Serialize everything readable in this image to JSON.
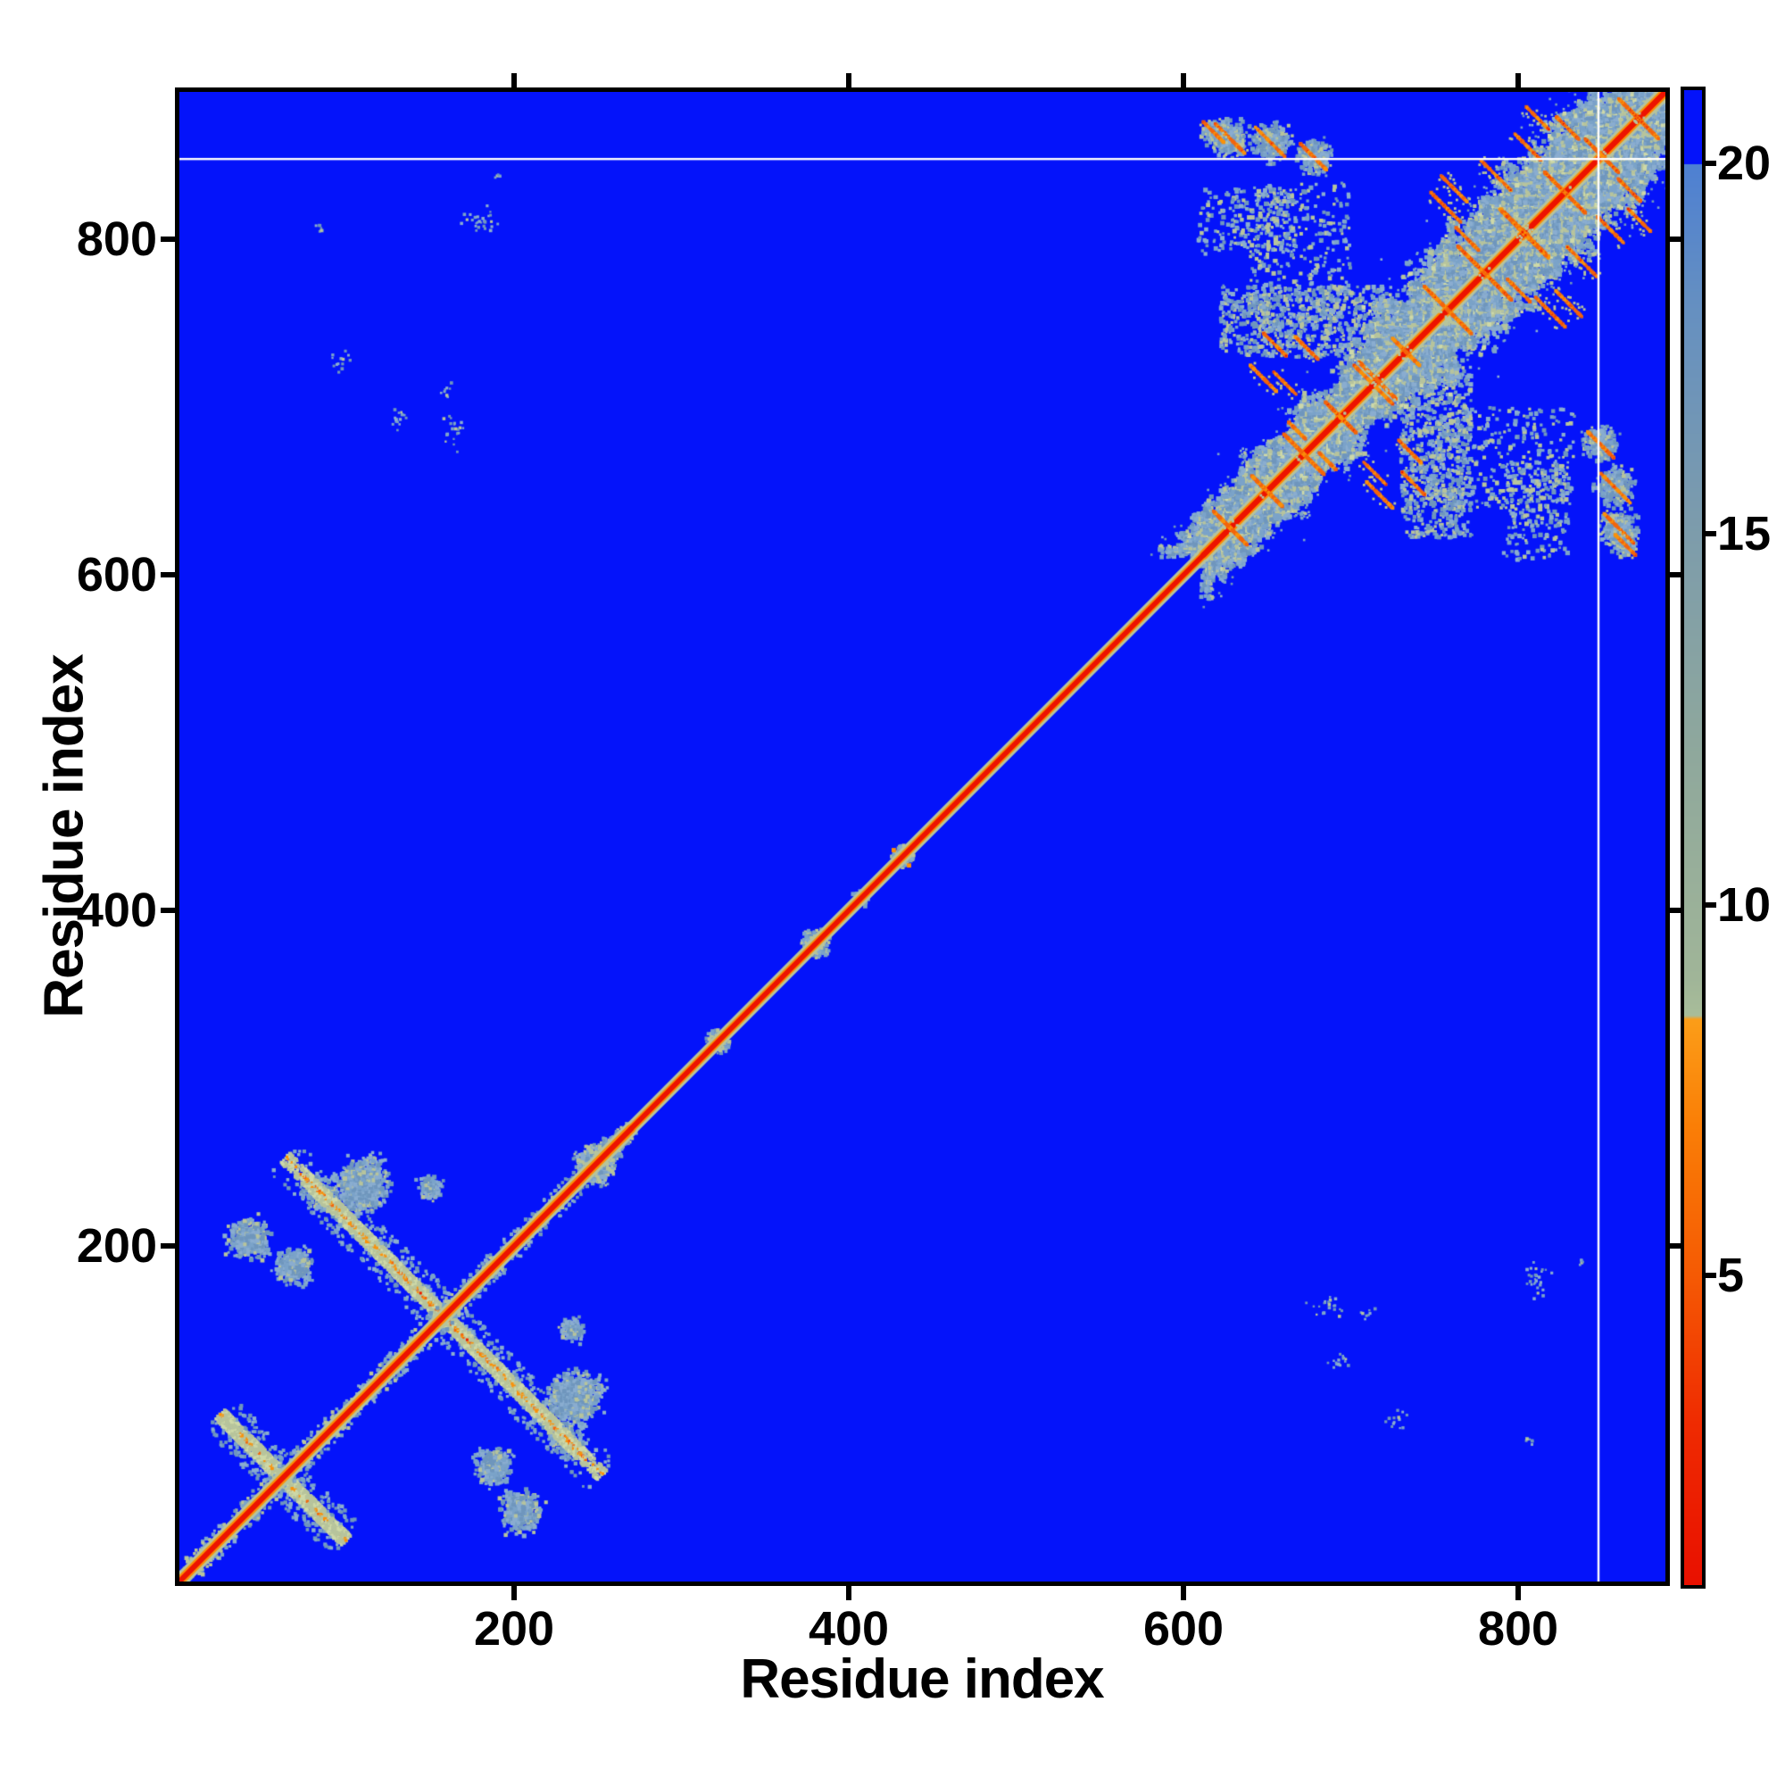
{
  "figure": {
    "x_axis_title": "Residue index",
    "y_axis_title": "Residue index",
    "x_tick_labels": [
      "200",
      "400",
      "600",
      "800"
    ],
    "y_tick_labels": [
      "200",
      "400",
      "600",
      "800"
    ],
    "colorbar_tick_labels": [
      "20",
      "15",
      "10",
      "5"
    ]
  },
  "chart_data": {
    "type": "heatmap",
    "title": "",
    "xlabel": "Residue index",
    "ylabel": "Residue index",
    "x_range": [
      0,
      888
    ],
    "y_range": [
      0,
      888
    ],
    "x_ticks": [
      200,
      400,
      600,
      800
    ],
    "y_ticks": [
      200,
      400,
      600,
      800
    ],
    "axis_max": 888,
    "symmetric": true,
    "missing_residue_line": 848,
    "colorbar": {
      "min": 0.8,
      "max": 21.0,
      "ticks": [
        20,
        15,
        10,
        5
      ],
      "blue_cutoff": 20.0,
      "orange_sage_boundary": 8.45,
      "stops": [
        [
          21.0,
          "#0413fa"
        ],
        [
          20.01,
          "#0413fa"
        ],
        [
          20.0,
          "#4e80d2"
        ],
        [
          18.0,
          "#6690c0"
        ],
        [
          15.0,
          "#7d9cab"
        ],
        [
          12.0,
          "#8fa89c"
        ],
        [
          9.0,
          "#a0b598"
        ],
        [
          8.5,
          "#a8bd99"
        ],
        [
          8.45,
          "#fb9d18"
        ],
        [
          7.0,
          "#fa7e06"
        ],
        [
          5.0,
          "#f55a04"
        ],
        [
          3.0,
          "#ef2b01"
        ],
        [
          0.8,
          "#e91000"
        ]
      ]
    },
    "colors": {
      "background": "#0413fa",
      "steel": "#7ba3c9",
      "steel2": "#6f96bd",
      "steel3": "#8aadd0",
      "sage": "#b7c49c",
      "sage_light": "#ced9a8",
      "orange": "#fb9108",
      "deep_orange": "#f4650a",
      "red": "#ed1300",
      "white_line": "#ffffff"
    },
    "diagonal_segments": [
      {
        "from": 0,
        "to": 270,
        "halo": 9,
        "orange": 2.8,
        "red": 1.6
      },
      {
        "from": 270,
        "to": 612,
        "halo": 3.6,
        "orange": 2.4,
        "red": 1.5
      },
      {
        "from": 612,
        "to": 888,
        "halo": 6.5,
        "orange": 2.8,
        "red": 1.7
      }
    ],
    "diagonal_bumps": [
      {
        "c": 248,
        "r": 14,
        "warm": false
      },
      {
        "c": 258,
        "r": 9,
        "warm": false
      },
      {
        "c": 322,
        "r": 8,
        "warm": false
      },
      {
        "c": 380,
        "r": 10,
        "warm": false
      },
      {
        "c": 407,
        "r": 5,
        "warm": false
      },
      {
        "c": 433,
        "r": 8,
        "warm": true
      }
    ],
    "antidiagonal_bands": [
      {
        "sum": 316,
        "i_from": 76,
        "i_to": 253,
        "strong": true
      },
      {
        "sum": 124,
        "i_from": 26,
        "i_to": 100,
        "strong": false
      }
    ],
    "blobs": [
      {
        "i": 110,
        "j": 237,
        "r": 21
      },
      {
        "i": 68,
        "j": 188,
        "r": 14
      },
      {
        "i": 42,
        "j": 204,
        "r": 16
      },
      {
        "i": 150,
        "j": 235,
        "r": 9
      },
      {
        "i": 85,
        "j": 230,
        "r": 11
      }
    ],
    "clusters": [
      {
        "from": 612,
        "to": 737,
        "halfwidth": 22,
        "variance": 14
      },
      {
        "from": 737,
        "to": 888,
        "halfwidth": 34,
        "variance": 20
      }
    ],
    "cross_streaks": [
      {
        "c": 628,
        "hl": 10
      },
      {
        "c": 650,
        "hl": 9
      },
      {
        "c": 672,
        "hl": 12
      },
      {
        "c": 694,
        "hl": 9
      },
      {
        "c": 716,
        "hl": 11
      },
      {
        "c": 733,
        "hl": 8
      },
      {
        "c": 758,
        "hl": 14
      },
      {
        "c": 780,
        "hl": 16
      },
      {
        "c": 804,
        "hl": 14
      },
      {
        "c": 828,
        "hl": 12
      },
      {
        "c": 850,
        "hl": 10
      },
      {
        "c": 872,
        "hl": 12
      }
    ],
    "offdiag_streaks": [
      {
        "i": 757,
        "j": 819,
        "hl": 9
      },
      {
        "i": 762,
        "j": 830,
        "hl": 8
      },
      {
        "i": 787,
        "j": 838,
        "hl": 9
      },
      {
        "i": 797,
        "j": 810,
        "hl": 8
      },
      {
        "i": 770,
        "j": 800,
        "hl": 7
      },
      {
        "i": 806,
        "j": 855,
        "hl": 8
      },
      {
        "i": 812,
        "j": 872,
        "hl": 7
      },
      {
        "i": 830,
        "j": 866,
        "hl": 7
      },
      {
        "i": 661,
        "j": 714,
        "hl": 7
      },
      {
        "i": 674,
        "j": 735,
        "hl": 7
      },
      {
        "i": 668,
        "j": 686,
        "hl": 5
      },
      {
        "i": 707,
        "j": 720,
        "hl": 5
      },
      {
        "i": 648,
        "j": 717,
        "hl": 8
      },
      {
        "i": 655,
        "j": 737,
        "hl": 7
      },
      {
        "i": 628,
        "j": 860,
        "hl": 9,
        "blob": 14
      },
      {
        "i": 652,
        "j": 858,
        "hl": 9,
        "blob": 15
      },
      {
        "i": 678,
        "j": 849,
        "hl": 8,
        "blob": 13
      },
      {
        "i": 618,
        "j": 864,
        "hl": 6,
        "blob": 9
      }
    ],
    "patches": [
      {
        "i0": 622,
        "i1": 728,
        "j0": 730,
        "j1": 772,
        "n": 850
      },
      {
        "i0": 609,
        "i1": 668,
        "j0": 793,
        "j1": 830,
        "n": 230
      },
      {
        "i0": 640,
        "i1": 700,
        "j0": 745,
        "j1": 833,
        "n": 380
      }
    ],
    "speck_clusters": [
      {
        "i": 165,
        "j": 685,
        "rx": 10,
        "ry": 14,
        "n": 26
      },
      {
        "i": 130,
        "j": 692,
        "rx": 8,
        "ry": 10,
        "n": 18
      },
      {
        "i": 160,
        "j": 710,
        "rx": 6,
        "ry": 6,
        "n": 10
      },
      {
        "i": 180,
        "j": 812,
        "rx": 16,
        "ry": 10,
        "n": 34
      },
      {
        "i": 84,
        "j": 807,
        "rx": 4,
        "ry": 4,
        "n": 8
      },
      {
        "i": 190,
        "j": 839,
        "rx": 4,
        "ry": 3,
        "n": 6
      },
      {
        "i": 95,
        "j": 728,
        "rx": 12,
        "ry": 9,
        "n": 22
      }
    ]
  }
}
